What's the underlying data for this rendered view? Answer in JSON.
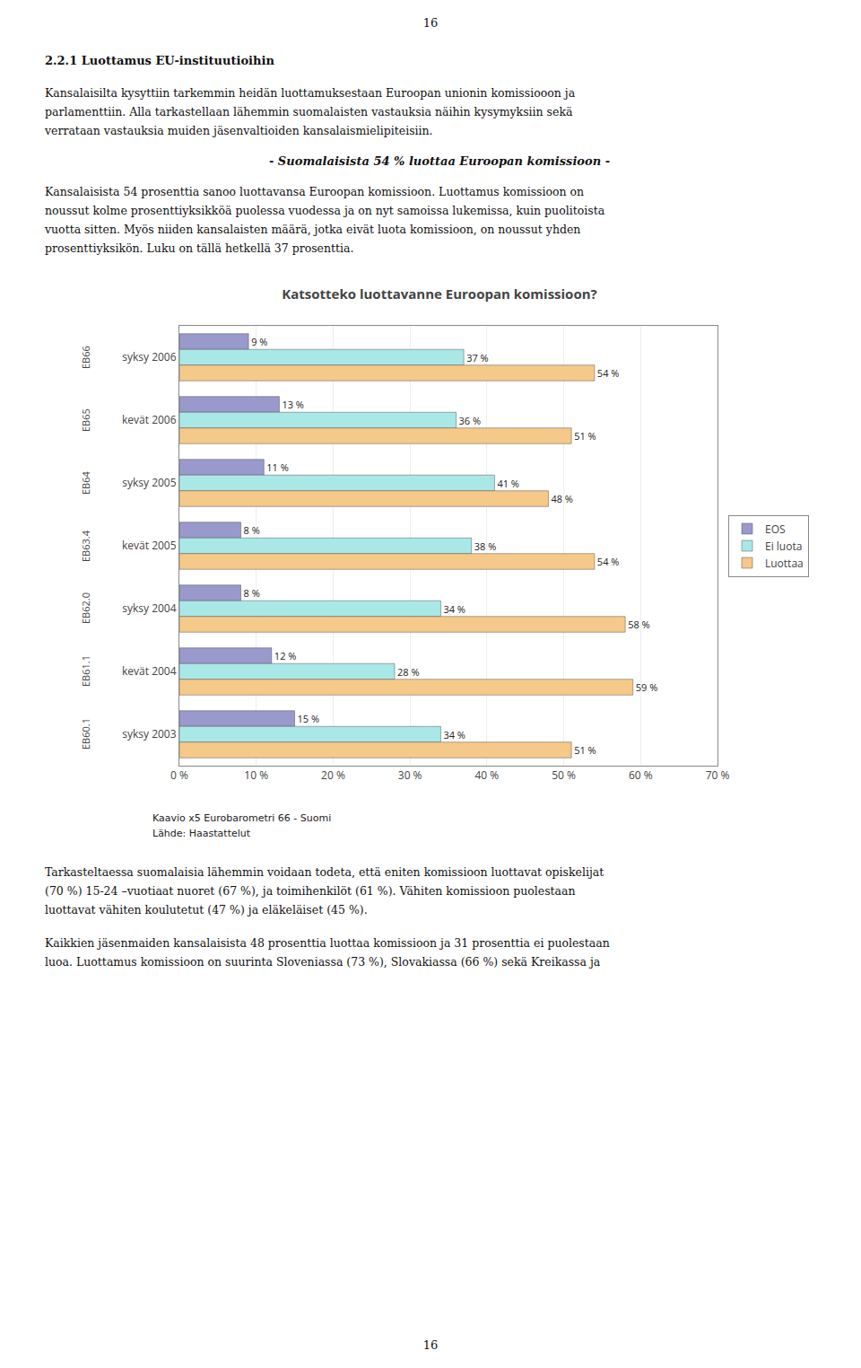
{
  "page": {
    "page_number": "16",
    "heading": "2.2.1 Luottamus EU-instituutioihin",
    "para1": [
      "Kansalaisilta kysyttiin tarkemmin heidän luottamuksestaan Euroopan unionin komissiooon ja",
      "parlamenttiin. Alla tarkastellaan lähemmin suomalaisten vastauksia näihin kysymyksiin sekä",
      "verrataan vastauksia muiden jäsenvaltioiden kansalaismielipiteisiin."
    ],
    "highlight": "- Suomalaisista 54 % luottaa Euroopan komissioon -",
    "para2": [
      "Kansalaisista 54 prosenttia sanoo luottavansa Euroopan komissioon. Luottamus komissioon on",
      "noussut kolme prosenttiyksikköä puolessa vuodessa ja on nyt samoissa lukemissa, kuin puolitoista",
      "vuotta sitten. Myös niiden kansalaisten määrä, jotka eivät luota komissioon, on noussut yhden",
      "prosenttiyksikön. Luku on tällä hetkellä 37 prosenttia."
    ],
    "para3": [
      "Tarkasteltaessa suomalaisia lähemmin voidaan todeta, että eniten komissioon luottavat opiskelijat",
      "(70 %) 15-24 –vuotiaat nuoret (67 %), ja toimihenkilöt (61 %). Vähiten komissioon puolestaan",
      "luottavat vähiten koulutetut (47 %) ja eläkeläiset (45 %)."
    ],
    "para4": [
      "Kaikkien jäsenmaiden kansalaisista 48 prosenttia luottaa komissioon ja 31 prosenttia ei puolestaan",
      "luoa. Luottamus komissioon on suurinta Sloveniassa (73 %), Slovakiassa (66 %) sekä Kreikassa ja"
    ]
  },
  "chart_data": {
    "type": "bar",
    "orientation": "horizontal",
    "title": "Katsotteko luottavanne Euroopan komissioon?",
    "categories": [
      "syksy 2006",
      "kevät 2006",
      "syksy 2005",
      "kevät 2005",
      "syksy 2004",
      "kevät 2004",
      "syksy 2003"
    ],
    "annotations": [
      "EB66",
      "EB65",
      "EB64",
      "EB63.4",
      "EB62.0",
      "EB61.1",
      "EB60.1"
    ],
    "series": [
      {
        "name": "EOS",
        "color": "#9999cc",
        "values": [
          9,
          13,
          11,
          8,
          8,
          12,
          15
        ],
        "value_labels": [
          "9 %",
          "13 %",
          "11 %",
          "8 %",
          "8 %",
          "12 %",
          "15 %"
        ]
      },
      {
        "name": "Ei luota",
        "color": "#aae8e8",
        "values": [
          37,
          36,
          41,
          38,
          34,
          28,
          34
        ],
        "value_labels": [
          "37 %",
          "36 %",
          "41 %",
          "38 %",
          "34 %",
          "28 %",
          "34 %"
        ]
      },
      {
        "name": "Luottaa",
        "color": "#f5c98a",
        "values": [
          54,
          51,
          48,
          54,
          58,
          59,
          51
        ],
        "value_labels": [
          "54 %",
          "51 %",
          "48 %",
          "54 %",
          "58 %",
          "59 %",
          "51 %"
        ]
      }
    ],
    "xlim": [
      0,
      70
    ],
    "xticks": [
      {
        "value": 0,
        "label": "0 %"
      },
      {
        "value": 10,
        "label": "10 %"
      },
      {
        "value": 20,
        "label": "20 %"
      },
      {
        "value": 30,
        "label": "30 %"
      },
      {
        "value": 40,
        "label": "40 %"
      },
      {
        "value": 50,
        "label": "50 %"
      },
      {
        "value": 60,
        "label": "60 %"
      },
      {
        "value": 70,
        "label": "70 %"
      }
    ],
    "grid": true,
    "legend": "right",
    "data_labels": true,
    "caption": [
      "Kaavio x5 Eurobarometri 66 - Suomi",
      "Lähde: Haastattelut"
    ]
  }
}
